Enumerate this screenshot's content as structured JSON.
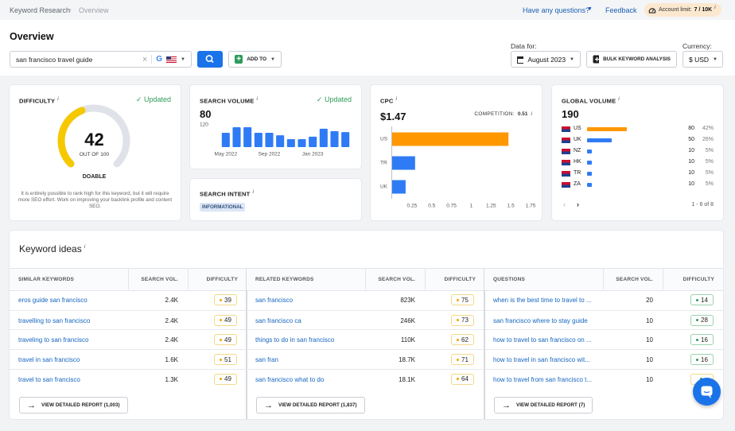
{
  "breadcrumb": {
    "root": "Keyword Research",
    "current": "Overview"
  },
  "topbar": {
    "help": "Have any questions?",
    "feedback": "Feedback",
    "limit_label": "Account limit:",
    "limit_value": "7 / 10K",
    "limit_info": "i"
  },
  "header": {
    "title": "Overview",
    "query": "san francisco travel guide",
    "add_to": "ADD TO",
    "data_for_label": "Data for:",
    "date": "August 2023",
    "bulk": "BULK KEYWORD ANALYSIS",
    "currency_label": "Currency:",
    "currency": "$ USD"
  },
  "difficulty": {
    "title": "DIFFICULTY",
    "info": "i",
    "status": "Updated",
    "value": 42,
    "out_of_label": "OUT OF",
    "max": 100,
    "level": "DOABLE",
    "note": "It is entirely possible to rank high for this keyword, but it will require more SEO effort. Work on improving your backlink profile and content SEO."
  },
  "search_volume": {
    "title": "SEARCH VOLUME",
    "info": "i",
    "status": "Updated",
    "total": 80,
    "chart": {
      "type": "bar",
      "categories": [
        "May 2022",
        null,
        null,
        null,
        "Sep 2022",
        null,
        null,
        null,
        "Jan 2023",
        null,
        null,
        null
      ],
      "values": [
        77,
        107,
        107,
        77,
        77,
        64,
        43,
        43,
        56,
        99,
        86,
        81
      ],
      "color": "#2f7bf5",
      "ylim": [
        0,
        120
      ],
      "yticks": [
        120
      ]
    }
  },
  "search_intent": {
    "title": "SEARCH INTENT",
    "info": "i",
    "badge": "INFORMATIONAL"
  },
  "cpc": {
    "title": "CPC",
    "info": "i",
    "value": "$1.47",
    "competition_label": "COMPETITION:",
    "competition": 0.51,
    "competition_info": "i",
    "chart": {
      "type": "bar",
      "orientation": "horizontal",
      "categories": [
        "US",
        "TR",
        "UK"
      ],
      "values": [
        1.47,
        0.29,
        0.17
      ],
      "colors": [
        "#ff9800",
        "#2f7bf5",
        "#2f7bf5"
      ],
      "xlim": [
        0,
        1.88
      ],
      "xticks": [
        0.25,
        0.5,
        0.75,
        1,
        1.25,
        1.5,
        1.75
      ]
    }
  },
  "global_volume": {
    "title": "GLOBAL VOLUME",
    "info": "i",
    "total": 190,
    "rows": [
      {
        "country": "US",
        "volume": 80,
        "share": "42%",
        "color": "#ff9800"
      },
      {
        "country": "UK",
        "volume": 50,
        "share": "26%",
        "color": "#2f7bf5"
      },
      {
        "country": "NZ",
        "volume": 10,
        "share": "5%",
        "color": "#2f7bf5"
      },
      {
        "country": "HK",
        "volume": 10,
        "share": "5%",
        "color": "#2f7bf5"
      },
      {
        "country": "TR",
        "volume": 10,
        "share": "5%",
        "color": "#2f7bf5"
      },
      {
        "country": "ZA",
        "volume": 10,
        "share": "5%",
        "color": "#2f7bf5"
      }
    ],
    "pager": "1 - 6 of 8"
  },
  "keyword_ideas": {
    "title": "Keyword ideas",
    "info": "i",
    "tables": [
      {
        "headers": [
          "SIMILAR KEYWORDS",
          "SEARCH VOL.",
          "DIFFICULTY"
        ],
        "rows": [
          [
            "eros guide san francisco",
            "2.4K",
            39
          ],
          [
            "travelling to san francisco",
            "2.4K",
            49
          ],
          [
            "traveling to san francisco",
            "2.4K",
            49
          ],
          [
            "travel in san francisco",
            "1.6K",
            51
          ],
          [
            "travel to san francisco",
            "1.3K",
            49
          ]
        ],
        "button": "VIEW DETAILED REPORT (1,003)"
      },
      {
        "headers": [
          "RELATED KEYWORDS",
          "SEARCH VOL.",
          "DIFFICULTY"
        ],
        "rows": [
          [
            "san francisco",
            "823K",
            75
          ],
          [
            "san francisco ca",
            "246K",
            73
          ],
          [
            "things to do in san francisco",
            "110K",
            62
          ],
          [
            "san fran",
            "18.7K",
            71
          ],
          [
            "san francisco what to do",
            "18.1K",
            64
          ]
        ],
        "button": "VIEW DETAILED REPORT (1,837)"
      },
      {
        "headers": [
          "QUESTIONS",
          "SEARCH VOL.",
          "DIFFICULTY"
        ],
        "rows": [
          [
            "when is the best time to travel to ...",
            "20",
            14
          ],
          [
            "san francisco where to stay guide",
            "10",
            28
          ],
          [
            "how to travel to san francisco on ...",
            "10",
            16
          ],
          [
            "how to travel in san francisco wit...",
            "10",
            16
          ],
          [
            "how to travel from san francisco t...",
            "10",
            null
          ]
        ],
        "button": "VIEW DETAILED REPORT (7)"
      }
    ]
  }
}
